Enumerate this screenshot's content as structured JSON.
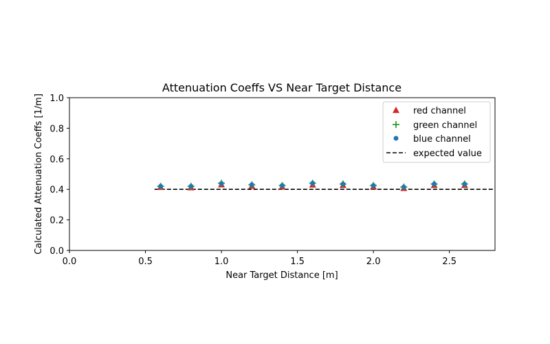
{
  "chart_data": {
    "type": "scatter",
    "title": "Attenuation Coeffs VS Near Target Distance",
    "xlabel": "Near Target Distance [m]",
    "ylabel": "Calculated Attenuation Coeffs [1/m]",
    "xlim": [
      0.0,
      2.8
    ],
    "ylim": [
      0.0,
      1.0
    ],
    "xticks": [
      0.0,
      0.5,
      1.0,
      1.5,
      2.0,
      2.5
    ],
    "xtick_labels": [
      "0.0",
      "0.5",
      "1.0",
      "1.5",
      "2.0",
      "2.5"
    ],
    "yticks": [
      0.0,
      0.2,
      0.4,
      0.6,
      0.8,
      1.0
    ],
    "ytick_labels": [
      "0.0",
      "0.2",
      "0.4",
      "0.6",
      "0.8",
      "1.0"
    ],
    "grid": false,
    "legend_position": "top-right",
    "x": [
      0.6,
      0.8,
      1.0,
      1.2,
      1.4,
      1.6,
      1.8,
      2.0,
      2.2,
      2.4,
      2.6
    ],
    "series": [
      {
        "name": "red channel",
        "marker": "triangle",
        "color": "#d62728",
        "values": [
          0.415,
          0.413,
          0.432,
          0.423,
          0.418,
          0.431,
          0.428,
          0.418,
          0.408,
          0.428,
          0.428
        ]
      },
      {
        "name": "green channel",
        "marker": "plus",
        "color": "#2ca02c",
        "values": [
          0.42,
          0.42,
          0.44,
          0.43,
          0.425,
          0.44,
          0.435,
          0.425,
          0.415,
          0.435,
          0.435
        ]
      },
      {
        "name": "blue channel",
        "marker": "circle",
        "color": "#1f77b4",
        "values": [
          0.42,
          0.42,
          0.438,
          0.43,
          0.425,
          0.44,
          0.435,
          0.425,
          0.415,
          0.435,
          0.435
        ]
      }
    ],
    "reference_line": {
      "name": "expected value",
      "y": 0.4,
      "style": "dashed",
      "color": "#000000"
    }
  }
}
